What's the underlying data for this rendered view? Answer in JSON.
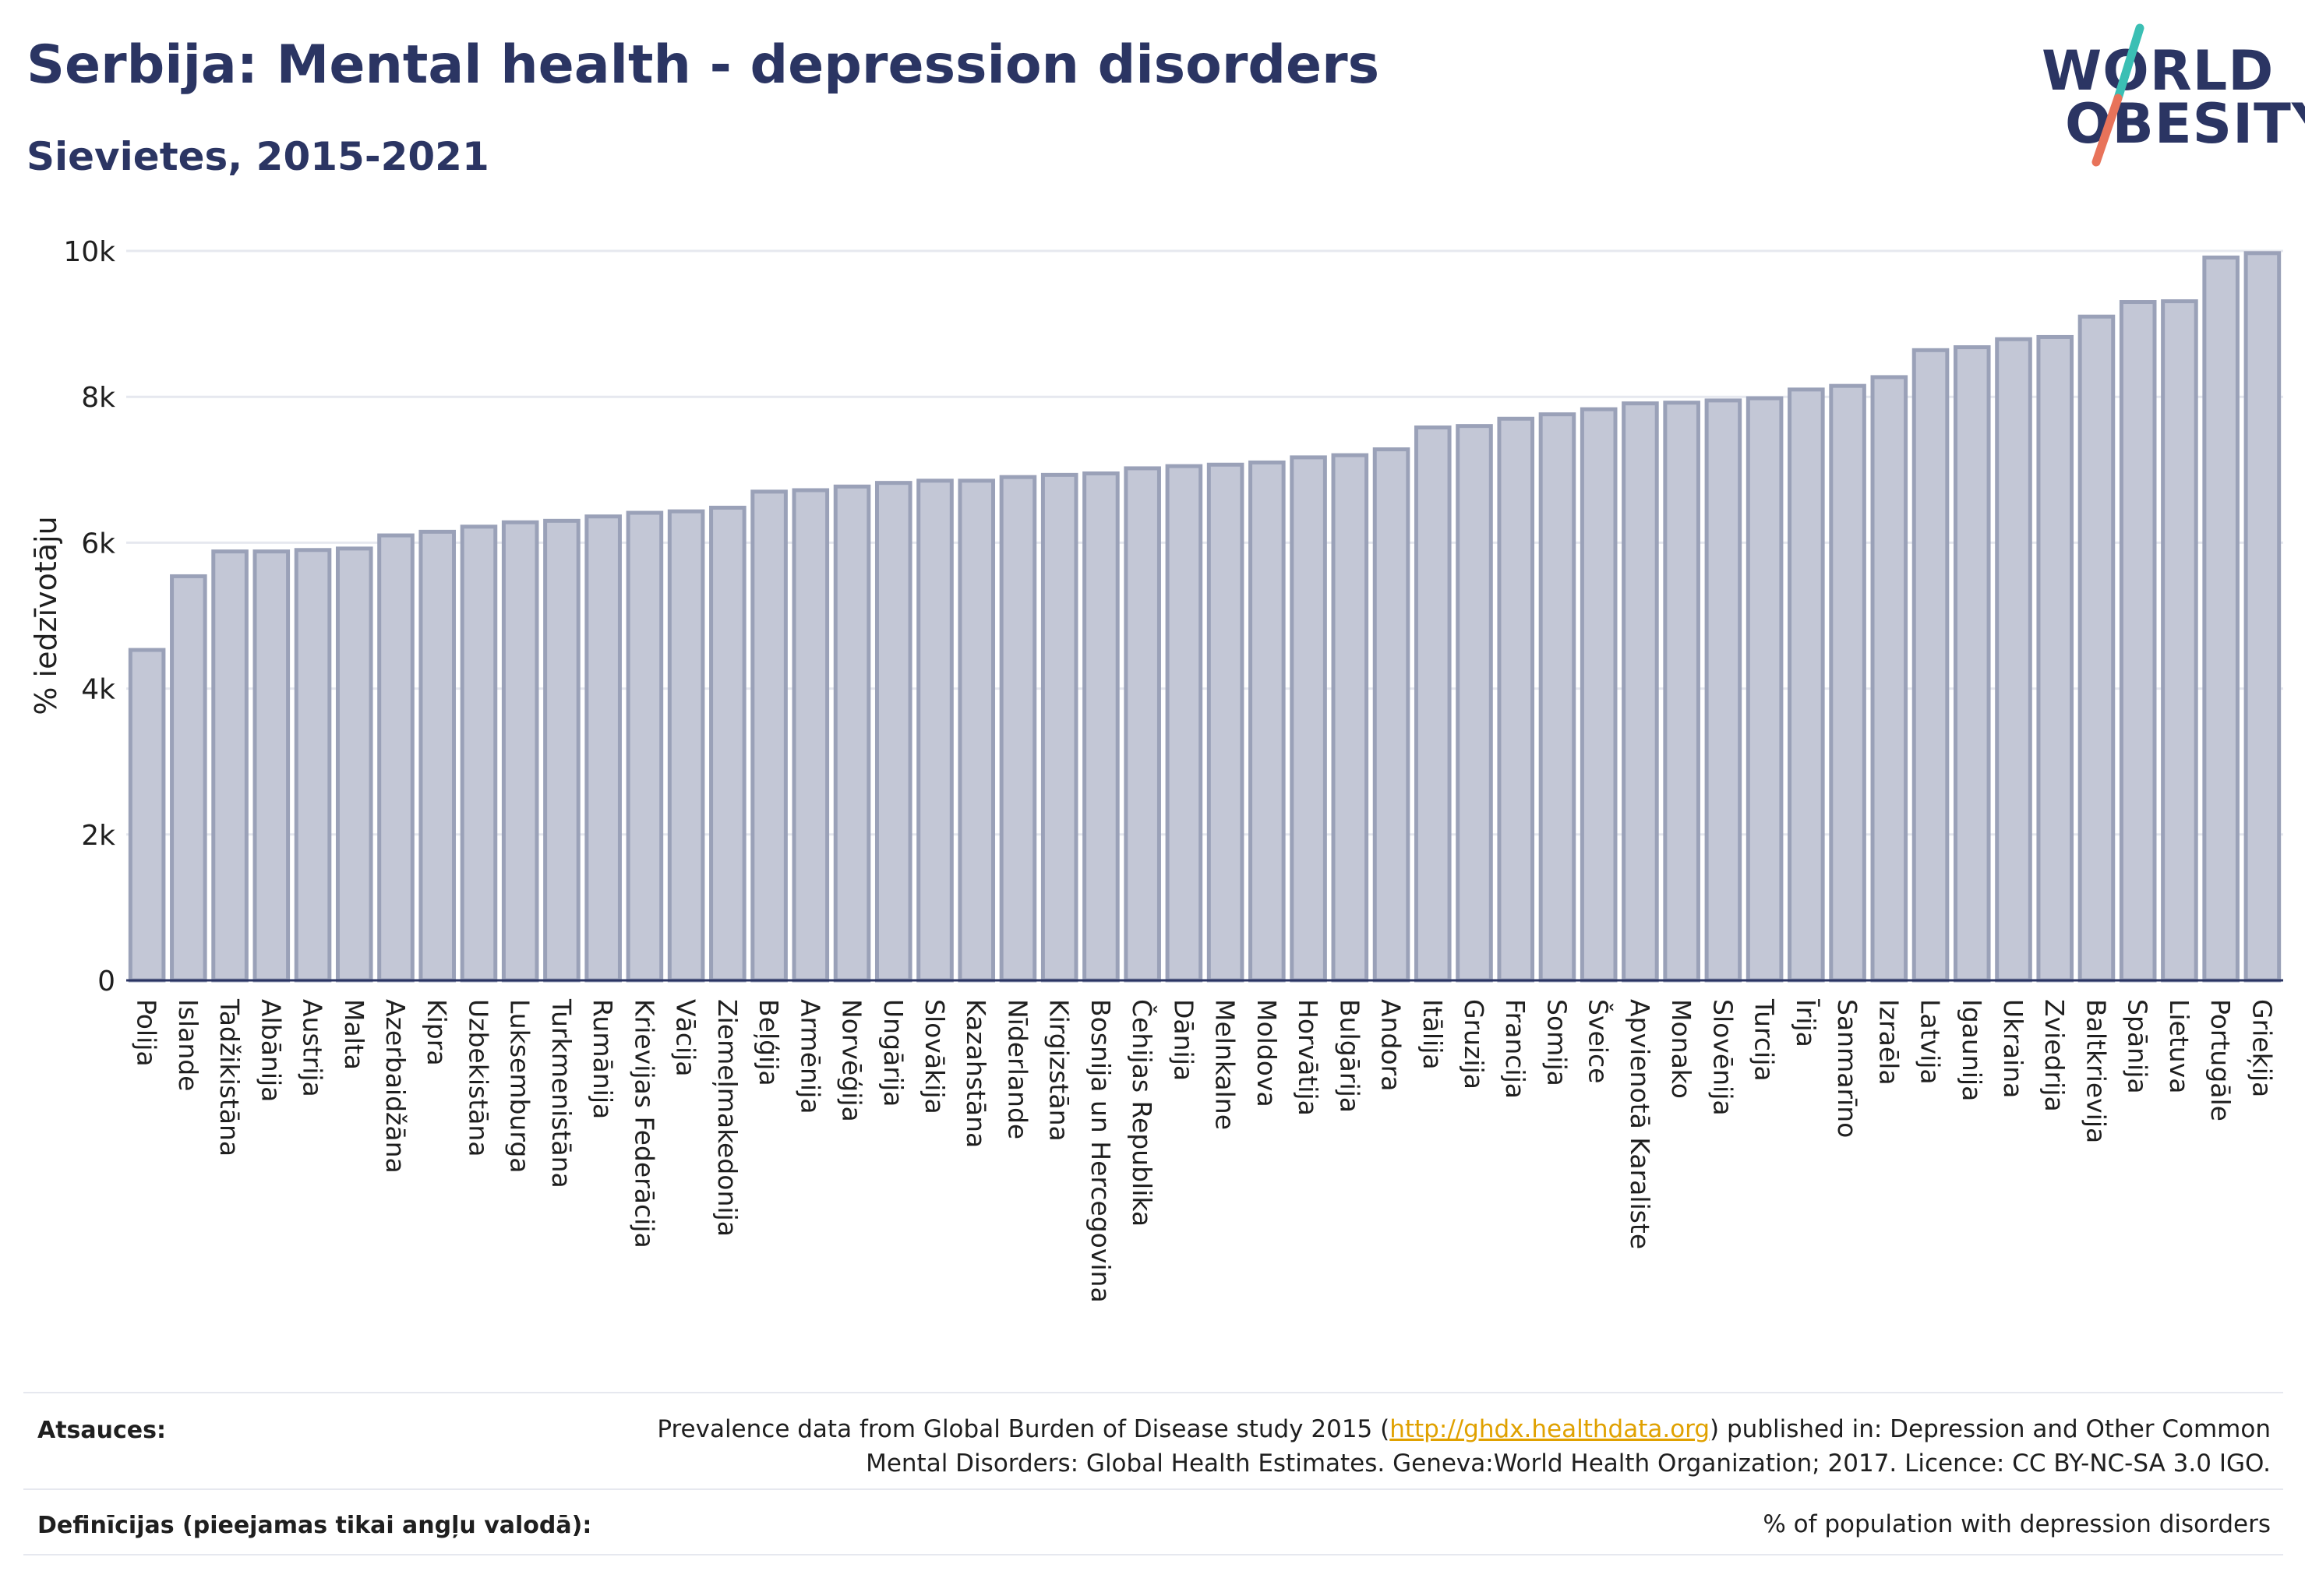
{
  "header": {
    "title": "Serbija: Mental health - depression disorders",
    "subtitle": "Sievietes, 2015-2021"
  },
  "logo": {
    "line1": "WORLD",
    "line2": "OBESITY",
    "accent_teal": "#3bbfb4",
    "accent_red": "#e8735a",
    "text_color": "#2b3563"
  },
  "chart_data": {
    "type": "bar",
    "ylabel": "% iedzīvotāju",
    "ylim": [
      0,
      10000
    ],
    "yticks": [
      0,
      2000,
      4000,
      6000,
      8000,
      10000
    ],
    "ytick_labels": [
      "0",
      "2k",
      "4k",
      "6k",
      "8k",
      "10k"
    ],
    "grid": true,
    "bar_fill": "#c3c7d6",
    "bar_stroke": "#9aa1b8",
    "categories": [
      "Polija",
      "Islande",
      "Tadžikistāna",
      "Albānija",
      "Austrija",
      "Malta",
      "Azerbaidžāna",
      "Kipra",
      "Uzbekistāna",
      "Luksemburga",
      "Turkmenistāna",
      "Rumānija",
      "Krievijas Federācija",
      "Vācija",
      "Ziemeļmakedonija",
      "Beļģija",
      "Armēnija",
      "Norvēģija",
      "Ungārija",
      "Slovākija",
      "Kazahstāna",
      "Nīderlande",
      "Kirgizstāna",
      "Bosnija un Hercegovina",
      "Čehijas Republika",
      "Dānija",
      "Melnkalne",
      "Moldova",
      "Horvātija",
      "Bulgārija",
      "Andora",
      "Itālija",
      "Gruzija",
      "Francija",
      "Somija",
      "Šveice",
      "Apvienotā Karaliste",
      "Monako",
      "Slovēnija",
      "Turcija",
      "Īrija",
      "Sanmarīno",
      "Izraēla",
      "Latvija",
      "Igaunija",
      "Ukraina",
      "Zviedrija",
      "Baltkrievija",
      "Spānija",
      "Lietuva",
      "Portugāle",
      "Grieķija"
    ],
    "values": [
      4530,
      5540,
      5880,
      5880,
      5900,
      5920,
      6100,
      6150,
      6220,
      6280,
      6300,
      6360,
      6410,
      6430,
      6480,
      6700,
      6720,
      6770,
      6820,
      6850,
      6850,
      6900,
      6930,
      6950,
      7020,
      7050,
      7070,
      7100,
      7170,
      7200,
      7280,
      7580,
      7600,
      7700,
      7760,
      7830,
      7910,
      7920,
      7950,
      7980,
      8100,
      8150,
      8270,
      8640,
      8680,
      8790,
      8820,
      9100,
      9300,
      9310,
      9910,
      9970
    ]
  },
  "footer": {
    "sources_label": "Atsauces:",
    "sources_text_pre": "Prevalence data from Global Burden of Disease study 2015 (",
    "sources_link": "http://ghdx.healthdata.org",
    "sources_text_post": ") published in: Depression and Other Common",
    "sources_text_line2": "Mental Disorders: Global Health Estimates. Geneva:World Health Organization; 2017. Licence: CC BY-NC-SA 3.0 IGO.",
    "definitions_label": "Definīcijas (pieejamas tikai angļu valodā):",
    "definitions_text": "% of population with depression disorders"
  }
}
